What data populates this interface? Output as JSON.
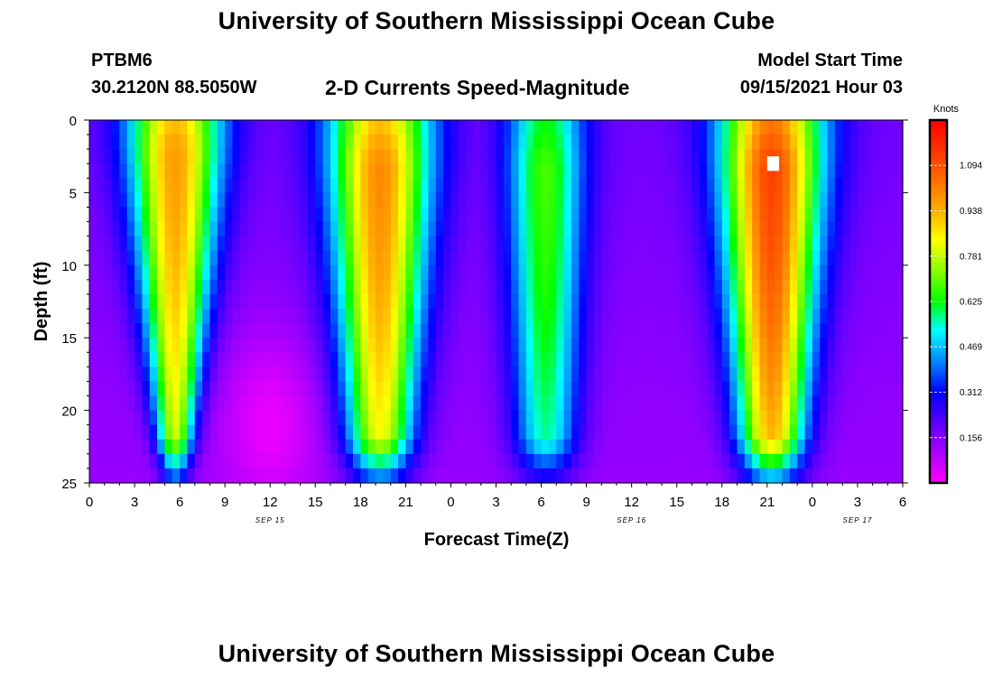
{
  "page": {
    "title_top": "University of Southern Mississippi Ocean Cube",
    "title_bottom": "University of Southern Mississippi Ocean Cube",
    "station": "PTBM6",
    "coordinates": "30.2120N  88.5050W",
    "plot_title": "2-D Currents Speed-Magnitude",
    "model_start_label": "Model Start Time",
    "model_start_value": "09/15/2021 Hour 03"
  },
  "chart_data": {
    "type": "heatmap",
    "title": "2-D Currents Speed-Magnitude",
    "xlabel": "Forecast Time(Z)",
    "ylabel": "Depth (ft)",
    "x_range_hours": [
      0,
      54
    ],
    "x_ticks": [
      {
        "hour": 0,
        "label": "0"
      },
      {
        "hour": 3,
        "label": "3"
      },
      {
        "hour": 6,
        "label": "6"
      },
      {
        "hour": 9,
        "label": "9"
      },
      {
        "hour": 12,
        "label": "12"
      },
      {
        "hour": 15,
        "label": "15"
      },
      {
        "hour": 18,
        "label": "18"
      },
      {
        "hour": 21,
        "label": "21"
      },
      {
        "hour": 24,
        "label": "0"
      },
      {
        "hour": 27,
        "label": "3"
      },
      {
        "hour": 30,
        "label": "6"
      },
      {
        "hour": 33,
        "label": "9"
      },
      {
        "hour": 36,
        "label": "12"
      },
      {
        "hour": 39,
        "label": "15"
      },
      {
        "hour": 42,
        "label": "18"
      },
      {
        "hour": 45,
        "label": "21"
      },
      {
        "hour": 48,
        "label": "0"
      },
      {
        "hour": 51,
        "label": "3"
      },
      {
        "hour": 54,
        "label": "6"
      }
    ],
    "date_labels": [
      {
        "hour": 12,
        "label": "SEP 15"
      },
      {
        "hour": 36,
        "label": "SEP 16"
      },
      {
        "hour": 51,
        "label": "SEP 17"
      }
    ],
    "y_range_ft": [
      0,
      25
    ],
    "y_ticks": [
      0,
      5,
      10,
      15,
      20,
      25
    ],
    "colorbar": {
      "unit": "Knots",
      "min": 0.0,
      "max": 1.25,
      "ticks": [
        "1.094",
        "0.938",
        "0.781",
        "0.625",
        "0.469",
        "0.312",
        "0.156"
      ]
    },
    "current_events": [
      {
        "center_hour": 5.7,
        "halfwidth_top_hours": 4.0,
        "halfwidth_bottom_hours": 1.2,
        "peak_knots": 0.97,
        "depth_peak_ft": 2
      },
      {
        "center_hour": 19.3,
        "halfwidth_top_hours": 4.4,
        "halfwidth_bottom_hours": 2.6,
        "peak_knots": 1.0,
        "depth_peak_ft": 3
      },
      {
        "center_hour": 30.3,
        "halfwidth_top_hours": 3.3,
        "halfwidth_bottom_hours": 2.6,
        "peak_knots": 0.68,
        "depth_peak_ft": 3
      },
      {
        "center_hour": 45.3,
        "halfwidth_top_hours": 4.4,
        "halfwidth_bottom_hours": 2.6,
        "peak_knots": 1.12,
        "depth_peak_ft": 3
      }
    ],
    "background_knots_surface": 0.18,
    "background_knots_bottom": 0.13,
    "slack_minimum": {
      "hour": 12,
      "depth_ft": 21,
      "knots": 0.02
    },
    "masked_cell": {
      "hour": 45.4,
      "depth_ft": 3
    }
  }
}
